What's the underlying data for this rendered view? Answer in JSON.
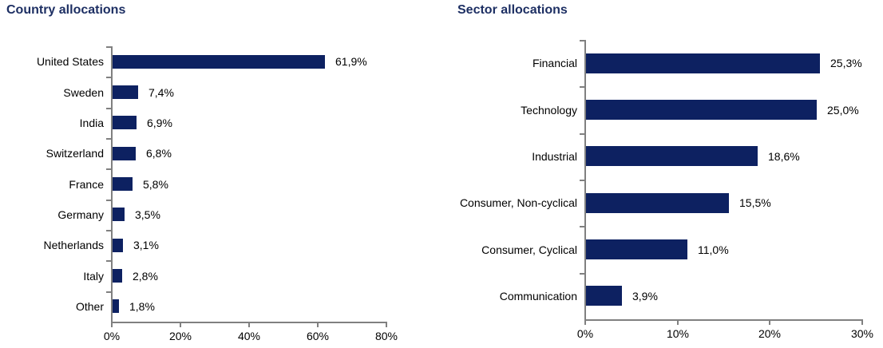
{
  "figure": {
    "background": "#ffffff",
    "text_color": "#000000",
    "axis_color": "#808080",
    "bar_color": "#0d2161",
    "title_color": "#1d2f63"
  },
  "chart_data": [
    {
      "type": "bar",
      "orientation": "horizontal",
      "title": "Country allocations",
      "categories": [
        "United States",
        "Sweden",
        "India",
        "Switzerland",
        "France",
        "Germany",
        "Netherlands",
        "Italy",
        "Other"
      ],
      "values": [
        61.9,
        7.4,
        6.9,
        6.8,
        5.8,
        3.5,
        3.1,
        2.8,
        1.8
      ],
      "value_labels": [
        "61,9%",
        "7,4%",
        "6,9%",
        "6,8%",
        "5,8%",
        "3,5%",
        "3,1%",
        "2,8%",
        "1,8%"
      ],
      "xlabel": "",
      "ylabel": "",
      "xlim": [
        0,
        80
      ],
      "x_ticks": [
        0,
        20,
        40,
        60,
        80
      ],
      "x_tick_labels": [
        "0%",
        "20%",
        "40%",
        "60%",
        "80%"
      ],
      "grid": false,
      "legend": false
    },
    {
      "type": "bar",
      "orientation": "horizontal",
      "title": "Sector allocations",
      "categories": [
        "Financial",
        "Technology",
        "Industrial",
        "Consumer, Non-cyclical",
        "Consumer, Cyclical",
        "Communication"
      ],
      "values": [
        25.3,
        25.0,
        18.6,
        15.5,
        11.0,
        3.9
      ],
      "value_labels": [
        "25,3%",
        "25,0%",
        "18,6%",
        "15,5%",
        "11,0%",
        "3,9%"
      ],
      "xlabel": "",
      "ylabel": "",
      "xlim": [
        0,
        30
      ],
      "x_ticks": [
        0,
        10,
        20,
        30
      ],
      "x_tick_labels": [
        "0%",
        "10%",
        "20%",
        "30%"
      ],
      "grid": false,
      "legend": false
    }
  ]
}
